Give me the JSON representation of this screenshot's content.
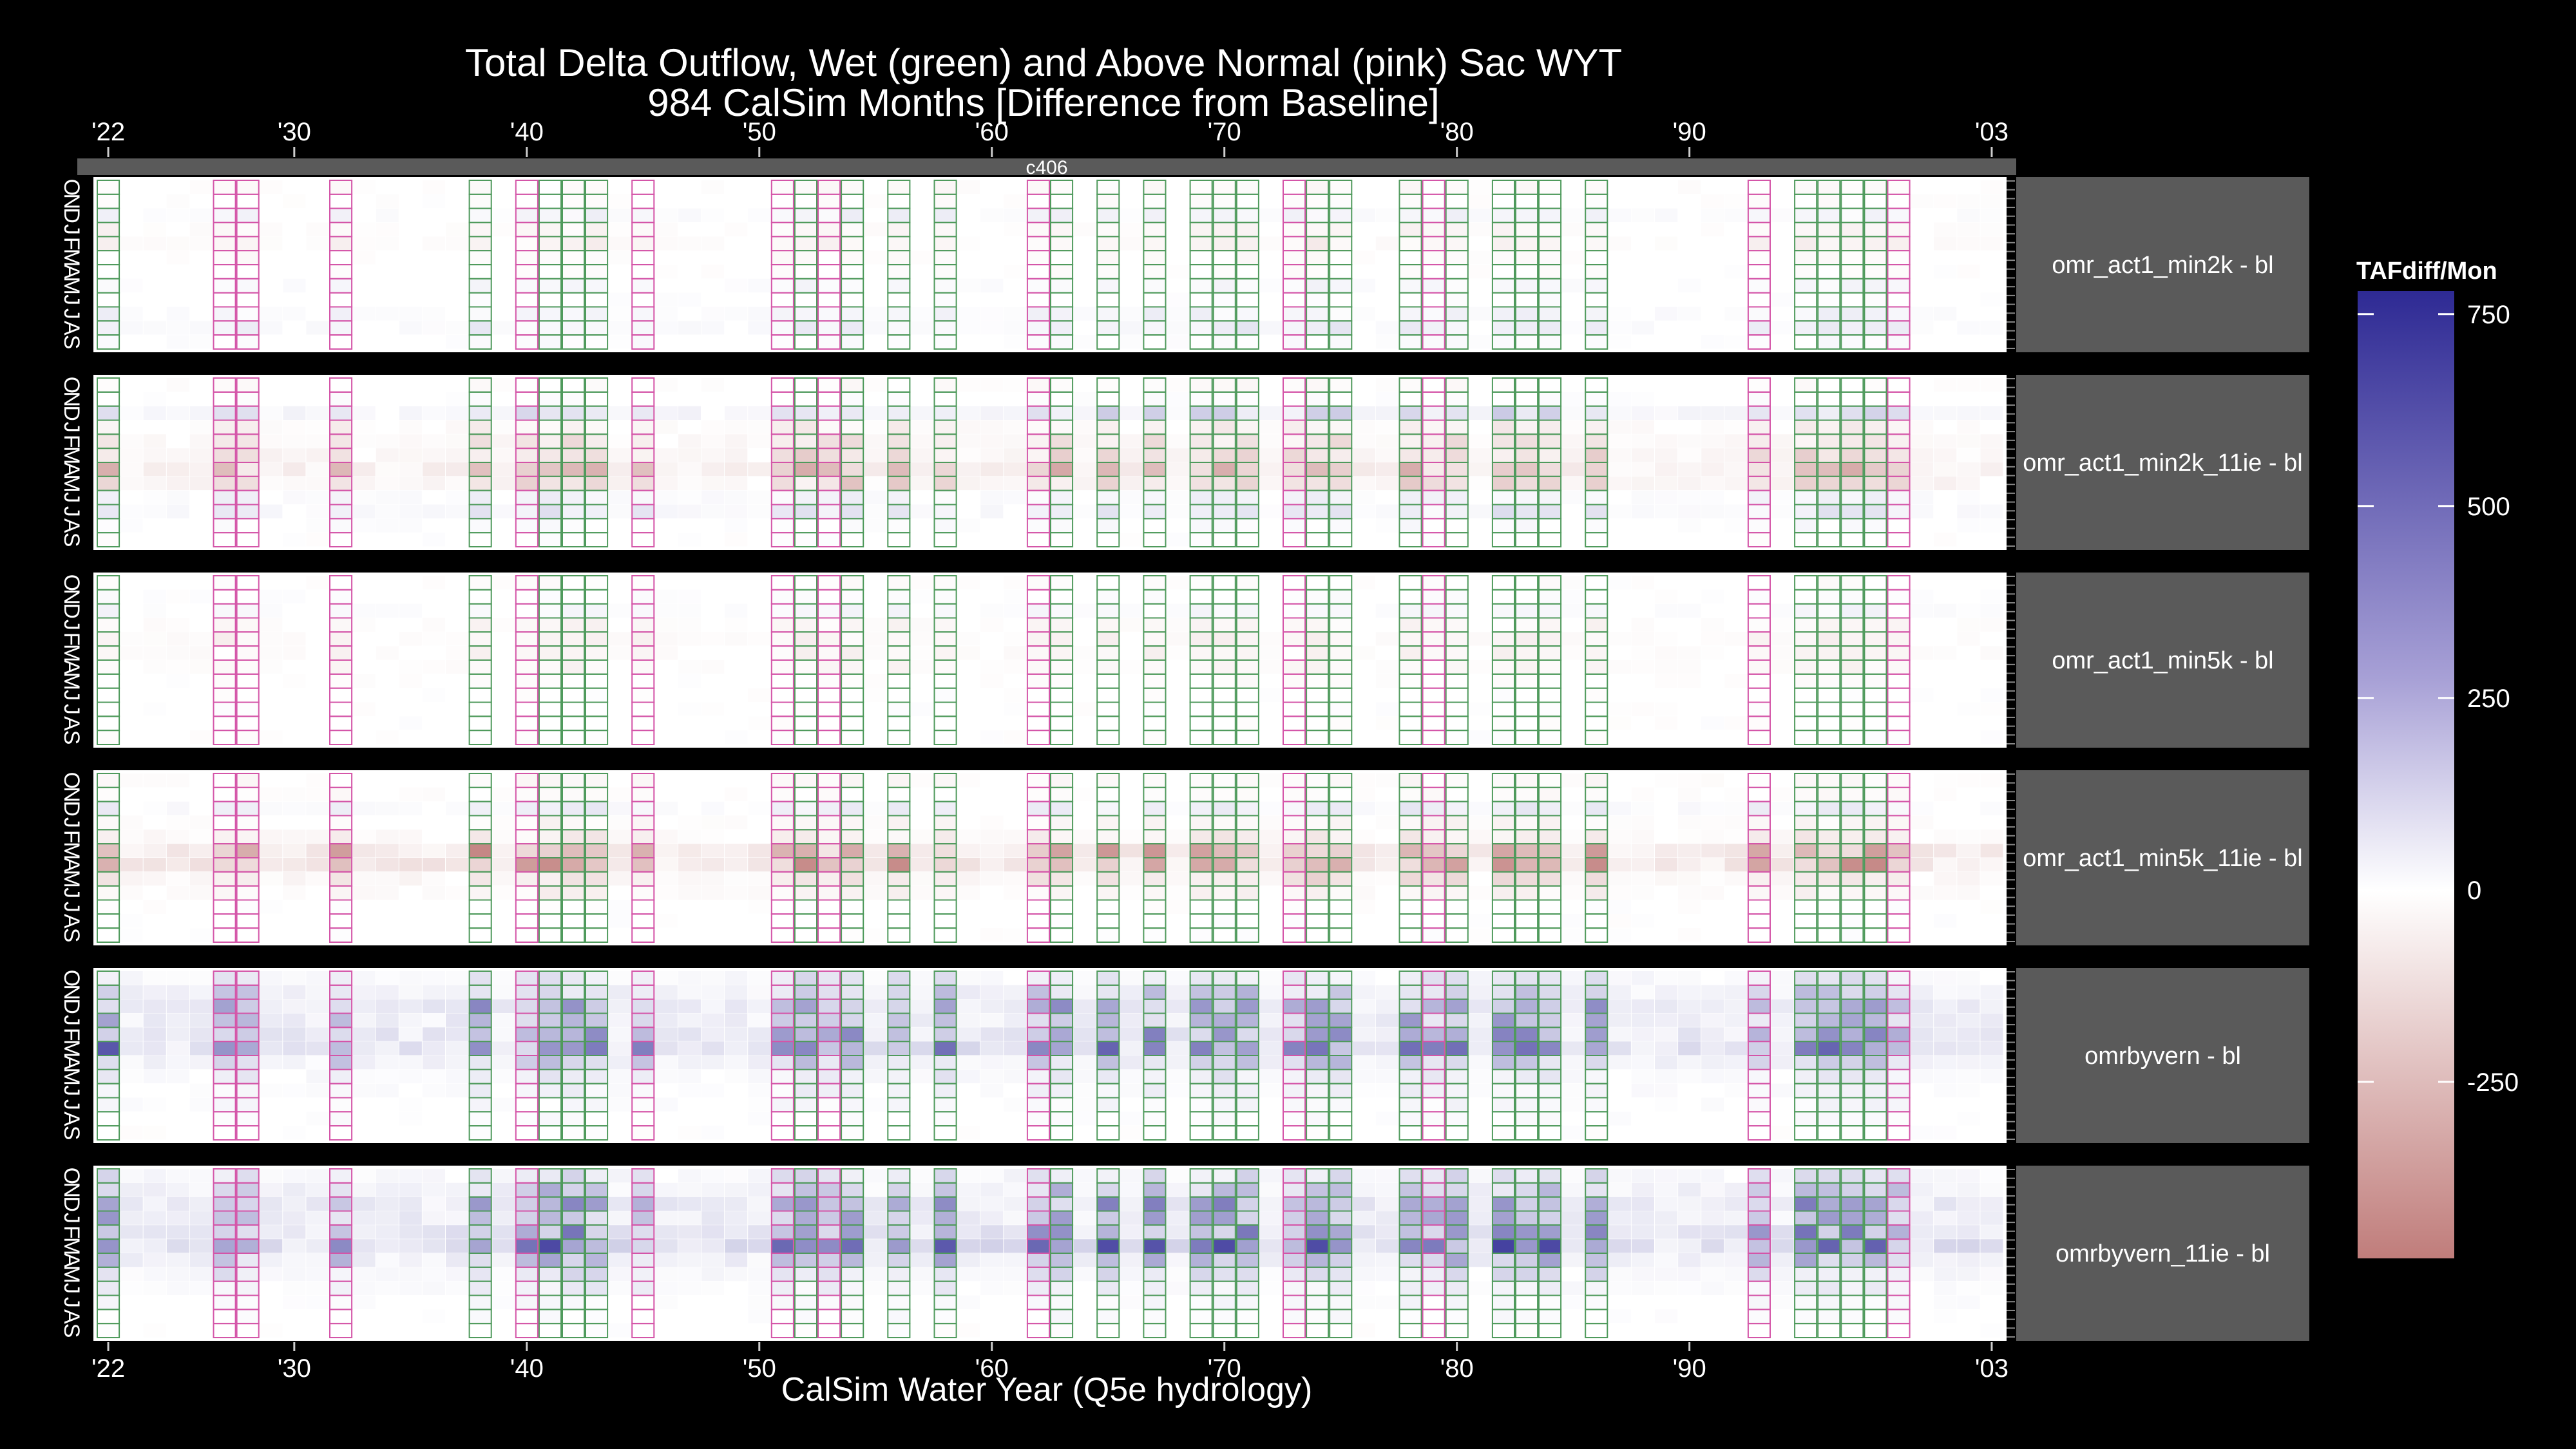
{
  "chart_data": {
    "type": "heatmap",
    "title": "Total Delta Outflow, Wet (green) and Above Normal (pink) Sac WYT",
    "subtitle": "984 CalSim Months [Difference from Baseline]",
    "xlabel": "CalSim Water Year (Q5e hydrology)",
    "top_strip": "c406",
    "x_ticks": [
      {
        "year": 1922,
        "label": "'22"
      },
      {
        "year": 1930,
        "label": "'30"
      },
      {
        "year": 1940,
        "label": "'40"
      },
      {
        "year": 1950,
        "label": "'50"
      },
      {
        "year": 1960,
        "label": "'60"
      },
      {
        "year": 1970,
        "label": "'70"
      },
      {
        "year": 1980,
        "label": "'80"
      },
      {
        "year": 1990,
        "label": "'90"
      },
      {
        "year": 2003,
        "label": "'03"
      }
    ],
    "xlim": [
      1922,
      2003
    ],
    "months": [
      "O",
      "N",
      "D",
      "J",
      "F",
      "M",
      "A",
      "M",
      "J",
      "J",
      "A",
      "S"
    ],
    "wet_years": [
      1922,
      1938,
      1941,
      1942,
      1943,
      1952,
      1954,
      1956,
      1958,
      1963,
      1965,
      1967,
      1969,
      1970,
      1971,
      1974,
      1975,
      1978,
      1980,
      1982,
      1983,
      1984,
      1986,
      1995,
      1996,
      1997,
      1998
    ],
    "above_normal_years": [
      1927,
      1928,
      1932,
      1940,
      1945,
      1951,
      1953,
      1962,
      1973,
      1979,
      1993,
      1999
    ],
    "legend": {
      "title": "TAFdiff/Mon",
      "ticks": [
        750,
        500,
        250,
        0,
        -250
      ],
      "range": [
        -480,
        780
      ],
      "colors": {
        "low": "#c07d7b",
        "mid": "#ffffff",
        "high": "#2e2a94"
      }
    },
    "panels": [
      {
        "label": "omr_act1_min2k - bl",
        "pattern": {
          "O": -12,
          "N": -5,
          "D": 28,
          "J": -22,
          "F": -30,
          "M": -10,
          "A": -5,
          "M2": 18,
          "J2": 4,
          "J3": 28,
          "A2": 40,
          "S": 10
        }
      },
      {
        "label": "omr_act1_min2k_11ie - bl",
        "pattern": {
          "O": -10,
          "N": 5,
          "D": 80,
          "J": -35,
          "F": -60,
          "M": -80,
          "A": -140,
          "M2": -90,
          "J2": 30,
          "J3": 50,
          "A2": 10,
          "S": 0
        }
      },
      {
        "label": "omr_act1_min5k - bl",
        "pattern": {
          "O": -6,
          "N": 5,
          "D": 18,
          "J": -20,
          "F": -32,
          "M": -25,
          "A": -20,
          "M2": -5,
          "J2": 0,
          "J3": 0,
          "A2": 0,
          "S": 0
        }
      },
      {
        "label": "omr_act1_min5k_11ie - bl",
        "pattern": {
          "O": -15,
          "N": -10,
          "D": 40,
          "J": -20,
          "F": -45,
          "M": -190,
          "A": -200,
          "M2": -70,
          "J2": -30,
          "J3": 0,
          "A2": 0,
          "S": 0
        }
      },
      {
        "label": "omrbyvern - bl",
        "pattern": {
          "O": 60,
          "N": 120,
          "D": 180,
          "J": 160,
          "F": 200,
          "M": 260,
          "A": 120,
          "M2": 50,
          "J2": 30,
          "J3": 20,
          "A2": 10,
          "S": 0
        }
      },
      {
        "label": "omrbyvern_11ie - bl",
        "pattern": {
          "O": 70,
          "N": 130,
          "D": 200,
          "J": 170,
          "F": 230,
          "M": 300,
          "A": 150,
          "M2": 70,
          "J2": 40,
          "J3": 15,
          "A2": 10,
          "S": 0
        }
      }
    ]
  }
}
